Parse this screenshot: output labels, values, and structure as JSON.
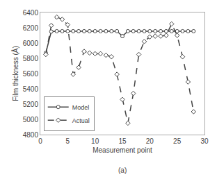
{
  "chart_data": {
    "type": "line",
    "subtitle": "(a)",
    "x_label": "Measurement point",
    "y_label": "Film thickness (Å)",
    "x": [
      1,
      2,
      3,
      4,
      5,
      6,
      7,
      8,
      9,
      10,
      11,
      12,
      13,
      14,
      15,
      16,
      17,
      18,
      19,
      20,
      21,
      22,
      23,
      24,
      25,
      26,
      27,
      28
    ],
    "series": [
      {
        "name": "Model",
        "color": "#444444",
        "marker": "circle",
        "line_style": "solid",
        "values": [
          5870,
          6150,
          6155,
          6155,
          6155,
          6155,
          6155,
          6155,
          6155,
          6155,
          6155,
          6155,
          6155,
          6155,
          6090,
          6155,
          6155,
          6155,
          6155,
          6155,
          6155,
          6155,
          6155,
          6155,
          6155,
          6155,
          6155,
          6155
        ]
      },
      {
        "name": "Actual",
        "color": "#444444",
        "marker": "diamond",
        "line_style": "dashed",
        "values": [
          5850,
          6230,
          6340,
          6310,
          6240,
          5590,
          5680,
          5890,
          5870,
          5860,
          5860,
          5840,
          5820,
          5590,
          5260,
          4950,
          5340,
          5850,
          6020,
          6080,
          6090,
          6090,
          6100,
          6250,
          6100,
          5820,
          5490,
          5100
        ]
      }
    ],
    "xlim": [
      0,
      30
    ],
    "xticks": [
      0,
      5,
      10,
      15,
      20,
      25,
      30
    ],
    "ylim": [
      4800,
      6400
    ],
    "yticks": [
      4800,
      5000,
      5200,
      5400,
      5600,
      5800,
      6000,
      6200,
      6400
    ],
    "grid": false,
    "legend": "lower left"
  }
}
